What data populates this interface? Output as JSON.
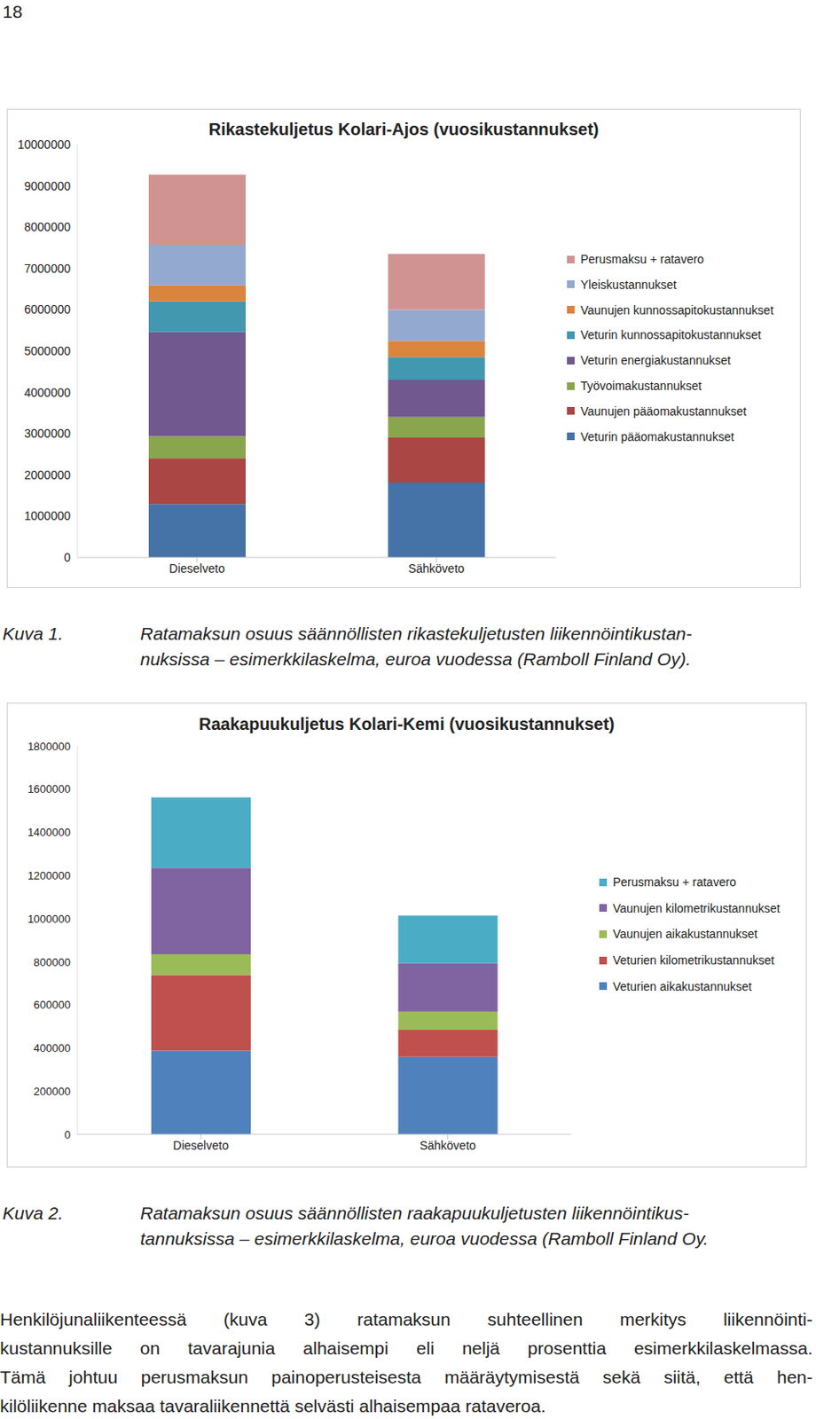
{
  "page_number": "18",
  "chart_data": [
    {
      "type": "bar",
      "title": "Rikastekuljetus Kolari-Ajos (vuosikustannukset)",
      "categories": [
        "Dieselveto",
        "Sähköveto"
      ],
      "stacked": true,
      "grid": false,
      "legend": "right",
      "ylim": [
        0,
        10000000
      ],
      "yticks": [
        0,
        1000000,
        2000000,
        3000000,
        4000000,
        5000000,
        6000000,
        7000000,
        8000000,
        9000000,
        10000000
      ],
      "series": [
        {
          "name": "Veturin pääomakustannukset",
          "color": "#4572A7",
          "values": [
            1290000,
            1810000
          ]
        },
        {
          "name": "Vaunujen pääomakustannukset",
          "color": "#AA4643",
          "values": [
            1110000,
            1090000
          ]
        },
        {
          "name": "Työvoimakustannukset",
          "color": "#89A54E",
          "values": [
            530000,
            500000
          ]
        },
        {
          "name": "Veturin energiakustannukset",
          "color": "#71588F",
          "values": [
            2530000,
            900000
          ]
        },
        {
          "name": "Veturin kunnossapitokustannukset",
          "color": "#4198AF",
          "values": [
            740000,
            550000
          ]
        },
        {
          "name": "Vaunujen kunnossapitokustannukset",
          "color": "#DB843D",
          "values": [
            390000,
            390000
          ]
        },
        {
          "name": "Yleiskustannukset",
          "color": "#93A9CF",
          "values": [
            980000,
            760000
          ]
        },
        {
          "name": "Perusmaksu + ratavero",
          "color": "#D19392",
          "values": [
            1700000,
            1350000
          ]
        }
      ]
    },
    {
      "type": "bar",
      "title": "Raakapuukuljetus Kolari-Kemi (vuosikustannukset)",
      "categories": [
        "Dieselveto",
        "Sähköveto"
      ],
      "stacked": true,
      "grid": false,
      "legend": "right",
      "ylim": [
        0,
        1800000
      ],
      "yticks": [
        0,
        200000,
        400000,
        600000,
        800000,
        1000000,
        1200000,
        1400000,
        1600000,
        1800000
      ],
      "series": [
        {
          "name": "Veturien aikakustannukset",
          "color": "#4F81BD",
          "values": [
            388000,
            359000
          ]
        },
        {
          "name": "Veturien kilometrikustannukset",
          "color": "#C0504D",
          "values": [
            351000,
            125000
          ]
        },
        {
          "name": "Vaunujen aikakustannukset",
          "color": "#9BBB59",
          "values": [
            96000,
            84000
          ]
        },
        {
          "name": "Vaunujen kilometrikustannukset",
          "color": "#8064A2",
          "values": [
            401000,
            225000
          ]
        },
        {
          "name": "Perusmaksu + ratavero",
          "color": "#4BACC6",
          "values": [
            326000,
            221000
          ]
        }
      ]
    }
  ],
  "figures": [
    {
      "label": "Kuva 1.",
      "caption": [
        "Ratamaksun osuus säännöllisten rikastekuljetusten liikennöintikustan-",
        "nuksissa – esimerkkilaskelma, euroa vuodessa (Ramboll Finland Oy)."
      ]
    },
    {
      "label": "Kuva 2.",
      "caption": [
        "Ratamaksun osuus säännöllisten raakapuukuljetusten liikennöintikus-",
        "tannuksissa – esimerkkilaskelma, euroa vuodessa (Ramboll Finland Oy."
      ]
    }
  ],
  "paragraph": [
    "Henkilöjunaliikenteessä (kuva 3) ratamaksun suhteellinen merkitys liikennöinti-",
    "kustannuksille on tavarajunia alhaisempi eli neljä prosenttia esimerkkilaskelmassa.",
    "Tämä johtuu perusmaksun painoperusteisesta määräytymisestä sekä siitä, että hen-",
    "kilöliikenne maksaa tavaraliikennettä selvästi alhaisempaa rataveroa."
  ]
}
